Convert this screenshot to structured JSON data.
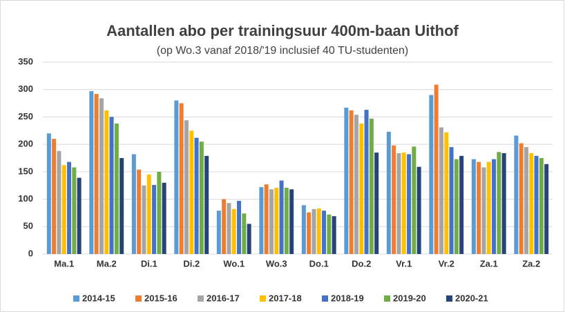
{
  "chart_data": {
    "type": "bar",
    "title": "Aantallen abo per trainingsuur 400m-baan Uithof",
    "subtitle": "(op Wo.3 vanaf 2018/'19 inclusief 40 TU-studenten)",
    "categories": [
      "Ma.1",
      "Ma.2",
      "Di.1",
      "Di.2",
      "Wo.1",
      "Wo.3",
      "Do.1",
      "Do.2",
      "Vr.1",
      "Vr.2",
      "Za.1",
      "Za.2"
    ],
    "series": [
      {
        "name": "2014-15",
        "color": "#5b9bd5",
        "values": [
          220,
          297,
          182,
          280,
          79,
          122,
          89,
          267,
          223,
          290,
          173,
          216
        ]
      },
      {
        "name": "2015-16",
        "color": "#ed7d31",
        "values": [
          210,
          292,
          154,
          275,
          100,
          127,
          76,
          262,
          198,
          309,
          168,
          202
        ]
      },
      {
        "name": "2016-17",
        "color": "#a5a5a5",
        "values": [
          188,
          284,
          125,
          244,
          93,
          118,
          82,
          254,
          184,
          231,
          158,
          195
        ]
      },
      {
        "name": "2017-18",
        "color": "#ffc000",
        "values": [
          162,
          262,
          145,
          225,
          82,
          121,
          83,
          238,
          185,
          222,
          168,
          184
        ]
      },
      {
        "name": "2018-19",
        "color": "#4472c4",
        "values": [
          168,
          250,
          126,
          212,
          97,
          134,
          79,
          263,
          182,
          195,
          173,
          179
        ]
      },
      {
        "name": "2019-20",
        "color": "#70ad47",
        "values": [
          158,
          238,
          150,
          205,
          74,
          121,
          72,
          247,
          196,
          173,
          186,
          175
        ]
      },
      {
        "name": "2020-21",
        "color": "#264478",
        "values": [
          139,
          175,
          130,
          179,
          55,
          118,
          69,
          185,
          159,
          179,
          184,
          164
        ]
      }
    ],
    "ylim": [
      0,
      350
    ],
    "yticks": [
      0,
      50,
      100,
      150,
      200,
      250,
      300,
      350
    ],
    "grid": true,
    "legend": "bottom"
  }
}
